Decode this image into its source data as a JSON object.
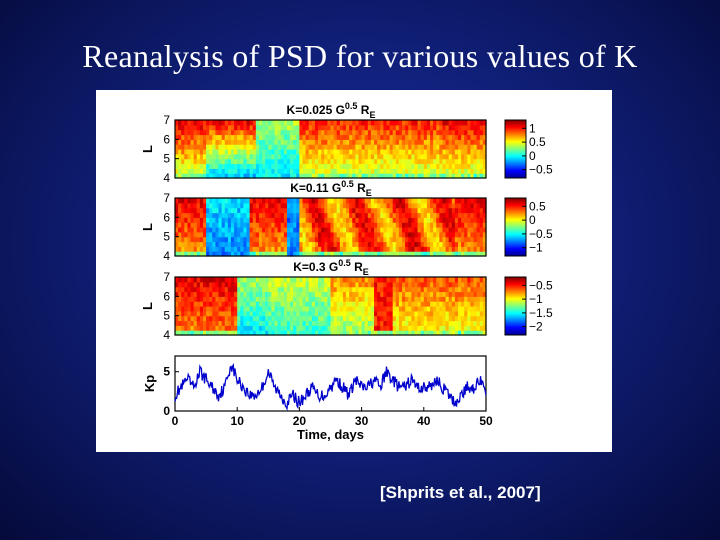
{
  "slide": {
    "title": "Reanalysis of PSD for various values of K",
    "citation": "[Shprits et al., 2007]"
  },
  "chart_data": [
    {
      "type": "heatmap",
      "title_main": "K=0.025 G",
      "title_sup": "0.5",
      "title_unit": " R",
      "title_sub": "E",
      "ylabel": "L",
      "ylim": [
        4,
        7
      ],
      "yticks": [
        "4",
        "5",
        "6",
        "7"
      ],
      "xlim": [
        0,
        50
      ],
      "colorbar_ticks": [
        "1",
        "0.5",
        "0",
        "−0.5"
      ],
      "colorbar_range": [
        -0.8,
        1.3
      ]
    },
    {
      "type": "heatmap",
      "title_main": "K=0.11 G",
      "title_sup": "0.5",
      "title_unit": " R",
      "title_sub": "E",
      "ylabel": "L",
      "ylim": [
        4,
        7
      ],
      "yticks": [
        "4",
        "5",
        "6",
        "7"
      ],
      "xlim": [
        0,
        50
      ],
      "colorbar_ticks": [
        "0.5",
        "0",
        "−0.5",
        "−1"
      ],
      "colorbar_range": [
        -1.3,
        0.8
      ]
    },
    {
      "type": "heatmap",
      "title_main": "K=0.3 G",
      "title_sup": "0.5",
      "title_unit": " R",
      "title_sub": "E",
      "ylabel": "L",
      "ylim": [
        4,
        7
      ],
      "yticks": [
        "4",
        "5",
        "6",
        "7"
      ],
      "xlim": [
        0,
        50
      ],
      "colorbar_ticks": [
        "−0.5",
        "−1",
        "−1.5",
        "−2"
      ],
      "colorbar_range": [
        -2.3,
        -0.2
      ]
    },
    {
      "type": "line",
      "ylabel": "Kp",
      "xlabel": "Time, days",
      "xlim": [
        0,
        50
      ],
      "ylim": [
        0,
        7
      ],
      "xticks": [
        "0",
        "10",
        "20",
        "30",
        "40",
        "50"
      ],
      "yticks": [
        "0",
        "5"
      ],
      "series": [
        {
          "name": "Kp",
          "x": [
            0,
            1,
            2,
            3,
            4,
            5,
            6,
            7,
            8,
            9,
            10,
            11,
            12,
            13,
            14,
            15,
            16,
            17,
            18,
            19,
            20,
            21,
            22,
            23,
            24,
            25,
            26,
            27,
            28,
            29,
            30,
            31,
            32,
            33,
            34,
            35,
            36,
            37,
            38,
            39,
            40,
            41,
            42,
            43,
            44,
            45,
            46,
            47,
            48,
            49,
            50
          ],
          "values": [
            2,
            3,
            4,
            3,
            5,
            4,
            3,
            2,
            3,
            6,
            4,
            3,
            2,
            2,
            3,
            5,
            3,
            2,
            1,
            2,
            1,
            2,
            3,
            2,
            2,
            3,
            4,
            3,
            2,
            4,
            3,
            3,
            4,
            3,
            5,
            4,
            3,
            3,
            4,
            3,
            3,
            3,
            4,
            3,
            2,
            1,
            2,
            3,
            3,
            4,
            2
          ]
        }
      ]
    }
  ]
}
